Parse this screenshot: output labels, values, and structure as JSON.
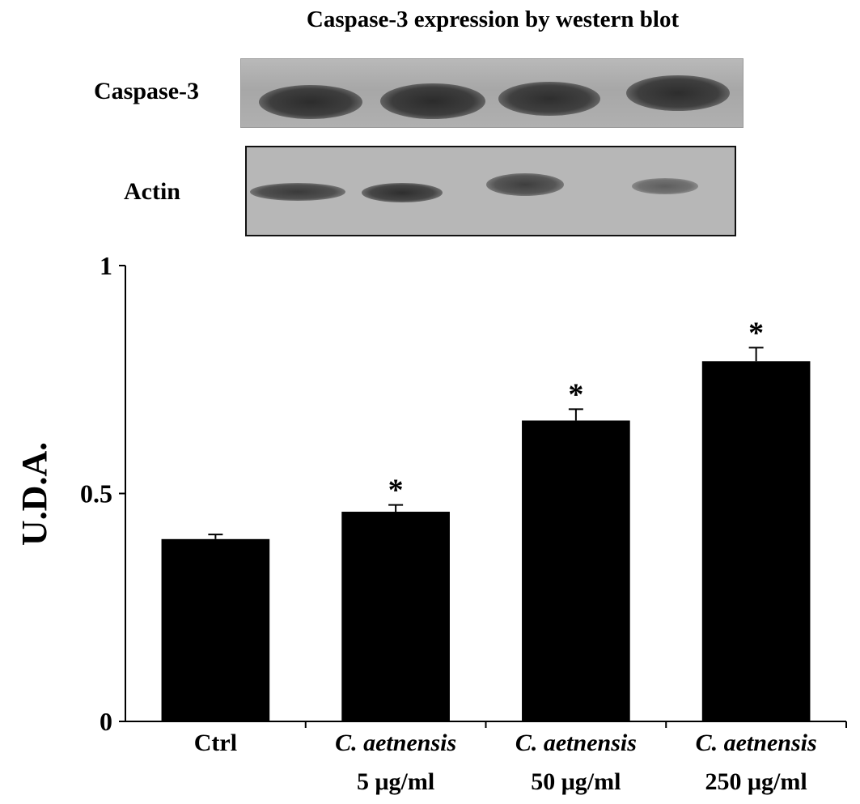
{
  "figure": {
    "title": "Caspase-3 expression by western blot",
    "blot_rows": [
      {
        "label": "Caspase-3"
      },
      {
        "label": "Actin"
      }
    ]
  },
  "chart_data": {
    "type": "bar",
    "categories": [
      {
        "line1": "Ctrl",
        "line1_italic": false,
        "line2": ""
      },
      {
        "line1": "C. aetnensis",
        "line1_italic": true,
        "line2": "5 μg/ml"
      },
      {
        "line1": "C. aetnensis",
        "line1_italic": true,
        "line2": "50 μg/ml"
      },
      {
        "line1": "C. aetnensis",
        "line1_italic": true,
        "line2": "250 μg/ml"
      }
    ],
    "values": [
      0.4,
      0.46,
      0.66,
      0.79
    ],
    "errors": [
      0.01,
      0.015,
      0.025,
      0.03
    ],
    "annotations": [
      "",
      "*",
      "*",
      "*"
    ],
    "ylabel": "U.D.A.",
    "ylim": [
      0,
      1
    ],
    "yticks": [
      {
        "value": 0,
        "label": "0"
      },
      {
        "value": 0.5,
        "label": "0.5"
      },
      {
        "value": 1,
        "label": "1"
      }
    ],
    "bar_color": "#000000",
    "grid": false,
    "legend": "none"
  }
}
